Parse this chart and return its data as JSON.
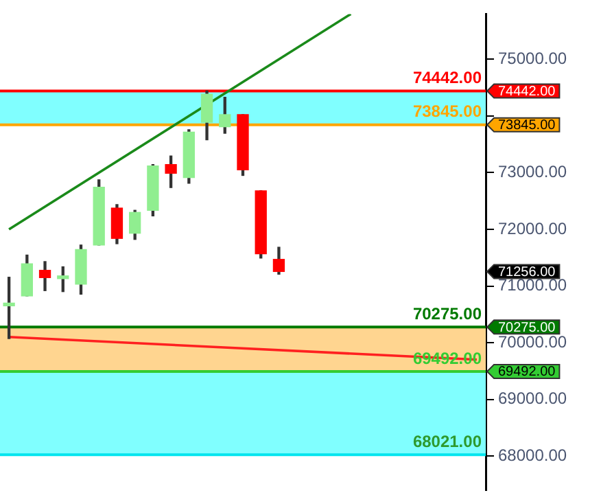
{
  "chart_data": {
    "type": "candlestick",
    "categories": [
      null,
      null,
      null,
      null,
      null,
      null,
      null,
      null,
      null,
      null,
      null,
      null,
      null,
      null,
      null,
      null,
      null,
      null,
      null,
      null,
      null,
      null,
      null,
      null,
      null,
      null,
      null
    ],
    "ohlc": [
      [
        70650,
        71155,
        70072,
        70690
      ],
      [
        70825,
        71546,
        70825,
        71392
      ],
      [
        71277,
        71431,
        70918,
        71148
      ],
      [
        71130,
        71339,
        70901,
        71165
      ],
      [
        71032,
        71723,
        70855,
        71645
      ],
      [
        71723,
        72874,
        71723,
        72743
      ],
      [
        72375,
        72437,
        71746,
        71840
      ],
      [
        71931,
        72336,
        71822,
        72299
      ],
      [
        72336,
        73142,
        72237,
        73119
      ],
      [
        73142,
        73296,
        72737,
        72990
      ],
      [
        72914,
        73757,
        72813,
        73717
      ],
      [
        73888,
        74442,
        73579,
        74385
      ],
      [
        73810,
        74332,
        73694,
        74026
      ],
      [
        74026,
        74026,
        72951,
        73050
      ],
      [
        72681,
        72681,
        71493,
        71569
      ],
      [
        71470,
        71684,
        71208,
        71256
      ],
      null,
      null,
      null,
      null,
      null,
      null,
      null,
      null,
      null,
      null,
      null
    ],
    "series": [
      {
        "type": "line",
        "values": [
          72000,
          null,
          null,
          null,
          null,
          null,
          null,
          null,
          null,
          null,
          null,
          null,
          null,
          null,
          null,
          null,
          null,
          null,
          null,
          75800,
          null,
          null,
          null,
          null,
          null,
          null,
          null
        ],
        "color": "#1a8a1a"
      },
      {
        "type": "line",
        "values": [
          70100,
          null,
          null,
          null,
          null,
          null,
          null,
          null,
          null,
          null,
          null,
          null,
          null,
          null,
          null,
          null,
          null,
          null,
          null,
          null,
          null,
          null,
          null,
          null,
          null,
          null,
          69700
        ],
        "color": "#ff2020"
      }
    ],
    "ylim": [
      67400,
      75800
    ],
    "yticks": [
      {
        "value": 68000,
        "label": "68000.00"
      },
      {
        "value": 69000,
        "label": "69000.00"
      },
      {
        "value": 70000,
        "label": "70000.00"
      },
      {
        "value": 71000,
        "label": "71000.00"
      },
      {
        "value": 72000,
        "label": "72000.00"
      },
      {
        "value": 73000,
        "label": "73000.00"
      },
      {
        "value": 74000,
        "label": null
      },
      {
        "value": 75000,
        "label": "75000.00"
      }
    ],
    "bands": [
      {
        "axis": "y",
        "from": 73845,
        "to": 74442,
        "color": "#80ffff"
      },
      {
        "axis": "y",
        "from": 69492,
        "to": 70275,
        "color": "#ffd590"
      },
      {
        "axis": "y",
        "from": 68021,
        "to": 69492,
        "color": "#80ffff"
      }
    ],
    "ref_lines": [
      {
        "axis": "y",
        "value": 74442,
        "label": "74442.00",
        "color": "#ff0000"
      },
      {
        "axis": "y",
        "value": 73845,
        "label": "73845.00",
        "color": "#ffa500"
      },
      {
        "axis": "y",
        "value": 70275,
        "label": "70275.00",
        "color": "#007a00"
      },
      {
        "axis": "y",
        "value": 69492,
        "label": "69492.00",
        "color": "#33cc33"
      },
      {
        "axis": "y",
        "value": 68021,
        "label": "68021.00",
        "color": "#00e5ee"
      }
    ],
    "annotations": [
      "71256.00"
    ],
    "legend": false
  }
}
